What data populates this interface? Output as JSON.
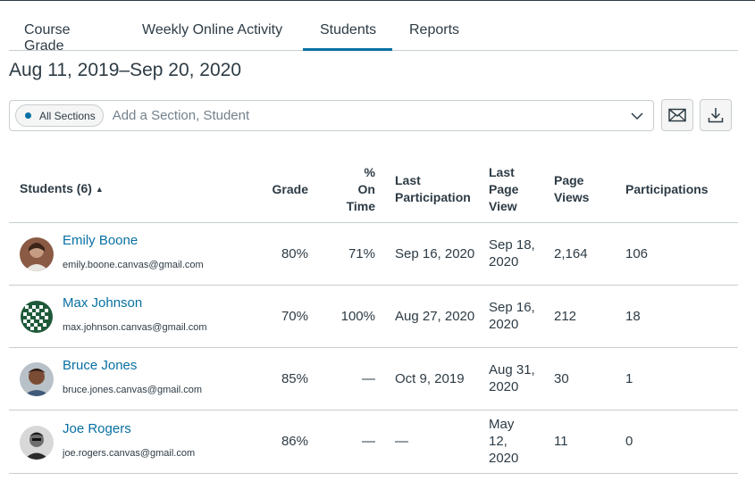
{
  "tabs": [
    {
      "label": "Course Grade"
    },
    {
      "label": "Weekly Online Activity"
    },
    {
      "label": "Students"
    },
    {
      "label": "Reports"
    }
  ],
  "active_tab": "Students",
  "date_range": "Aug 11, 2019–Sep 20, 2020",
  "filter": {
    "chip_label": "All Sections",
    "placeholder": "Add a Section, Student"
  },
  "icons": {
    "mail": "envelope-icon",
    "download": "download-icon",
    "dropdown": "chevron-down-icon",
    "sort": "sort-ascending-icon"
  },
  "colors": {
    "link": "#0770a3",
    "text": "#2d3b45",
    "border": "#c7cdd1"
  },
  "table": {
    "headers": {
      "students": "Students (6)",
      "sort_arrow": "▲",
      "grade": "Grade",
      "on_time": [
        "%",
        "On",
        "Time"
      ],
      "last_participation": [
        "Last",
        "Participation"
      ],
      "last_page_view": [
        "Last",
        "Page",
        "View"
      ],
      "page_views": [
        "Page",
        "Views"
      ],
      "participations": "Participations"
    },
    "rows": [
      {
        "name": "Emily Boone",
        "email": "emily.boone.canvas@gmail.com",
        "grade": "80%",
        "on_time": "71%",
        "last_participation": "Sep 16, 2020",
        "last_page_view": [
          "Sep 18,",
          "2020"
        ],
        "page_views": "2,164",
        "participations": "106"
      },
      {
        "name": "Max Johnson",
        "email": "max.johnson.canvas@gmail.com",
        "grade": "70%",
        "on_time": "100%",
        "last_participation": "Aug 27, 2020",
        "last_page_view": [
          "Sep 16,",
          "2020"
        ],
        "page_views": "212",
        "participations": "18"
      },
      {
        "name": "Bruce Jones",
        "email": "bruce.jones.canvas@gmail.com",
        "grade": "85%",
        "on_time": "—",
        "last_participation": "Oct 9, 2019",
        "last_page_view": [
          "Aug 31,",
          "2020"
        ],
        "page_views": "30",
        "participations": "1"
      },
      {
        "name": "Joe Rogers",
        "email": "joe.rogers.canvas@gmail.com",
        "grade": "86%",
        "on_time": "—",
        "last_participation": "—",
        "last_page_view": [
          "May",
          "12,",
          "2020"
        ],
        "page_views": "11",
        "participations": "0"
      }
    ]
  }
}
